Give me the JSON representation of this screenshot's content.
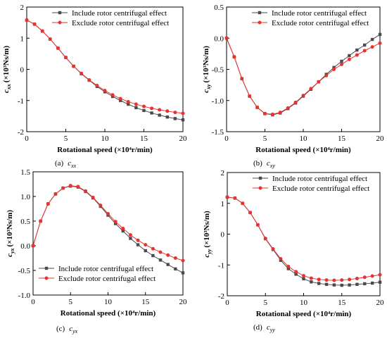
{
  "chart_data": [
    {
      "type": "line",
      "caption": {
        "label": "(a)",
        "symbol": "c",
        "sub": "xx"
      },
      "ylabel": "c_xx (×10³Ns/m)",
      "ylabel_parts": {
        "main": "c",
        "sub": "xx",
        "unit": "(×10³Ns/m)"
      },
      "xlabel": "Rotational speed (×10⁴r/min)",
      "xlim": [
        0,
        20
      ],
      "ylim": [
        -2,
        2
      ],
      "xticks": [
        "0",
        "5",
        "10",
        "15",
        "20"
      ],
      "yticks": [
        "-2",
        "-1",
        "0",
        "1",
        "2"
      ],
      "legend_position": "top-right",
      "x": [
        0,
        1,
        2,
        3,
        4,
        5,
        6,
        7,
        8,
        9,
        10,
        11,
        12,
        13,
        14,
        15,
        16,
        17,
        18,
        19,
        20
      ],
      "series": [
        {
          "name": "Include rotor centrifugal effect",
          "color": "#4a4a4a",
          "marker": "square",
          "values": [
            1.58,
            1.45,
            1.23,
            0.97,
            0.68,
            0.38,
            0.1,
            -0.14,
            -0.35,
            -0.55,
            -0.72,
            -0.87,
            -1.0,
            -1.12,
            -1.23,
            -1.32,
            -1.4,
            -1.47,
            -1.53,
            -1.58,
            -1.62
          ]
        },
        {
          "name": "Exclude rotor centrifugal effect",
          "color": "#e8322f",
          "marker": "circle",
          "values": [
            1.58,
            1.45,
            1.23,
            0.97,
            0.68,
            0.38,
            0.1,
            -0.13,
            -0.34,
            -0.52,
            -0.68,
            -0.82,
            -0.94,
            -1.04,
            -1.12,
            -1.19,
            -1.25,
            -1.3,
            -1.34,
            -1.38,
            -1.41
          ]
        }
      ]
    },
    {
      "type": "line",
      "caption": {
        "label": "(b)",
        "symbol": "c",
        "sub": "xy"
      },
      "ylabel_parts": {
        "main": "c",
        "sub": "xy",
        "unit": "(×10³Ns/m)"
      },
      "xlabel": "Rotational speed (×10⁴r/min)",
      "xlim": [
        0,
        20
      ],
      "ylim": [
        -1.5,
        0.5
      ],
      "xticks": [
        "0",
        "5",
        "10",
        "15",
        "20"
      ],
      "yticks": [
        "-1.5",
        "-1.0",
        "-0.5",
        "0.0",
        "0.5"
      ],
      "legend_position": "top-right",
      "x": [
        0,
        1,
        2,
        3,
        4,
        5,
        6,
        7,
        8,
        9,
        10,
        11,
        12,
        13,
        14,
        15,
        16,
        17,
        18,
        19,
        20
      ],
      "series": [
        {
          "name": "Include rotor centrifugal effect",
          "color": "#4a4a4a",
          "marker": "square",
          "values": [
            0.0,
            -0.3,
            -0.65,
            -0.93,
            -1.11,
            -1.21,
            -1.23,
            -1.2,
            -1.13,
            -1.04,
            -0.93,
            -0.82,
            -0.7,
            -0.58,
            -0.47,
            -0.37,
            -0.28,
            -0.19,
            -0.11,
            -0.02,
            0.06
          ]
        },
        {
          "name": "Exclude rotor centrifugal effect",
          "color": "#e8322f",
          "marker": "circle",
          "values": [
            0.0,
            -0.3,
            -0.65,
            -0.93,
            -1.11,
            -1.21,
            -1.22,
            -1.19,
            -1.12,
            -1.03,
            -0.92,
            -0.81,
            -0.7,
            -0.6,
            -0.5,
            -0.42,
            -0.34,
            -0.27,
            -0.2,
            -0.14,
            -0.08
          ]
        }
      ]
    },
    {
      "type": "line",
      "caption": {
        "label": "(c)",
        "symbol": "c",
        "sub": "yx"
      },
      "ylabel_parts": {
        "main": "c",
        "sub": "yx",
        "unit": "(×10³Ns/m)"
      },
      "xlabel": "Rotational speed (×10⁴r/min)",
      "xlim": [
        0,
        20
      ],
      "ylim": [
        -1.0,
        1.5
      ],
      "xticks": [
        "0",
        "5",
        "10",
        "15",
        "20"
      ],
      "yticks": [
        "-1.0",
        "-0.5",
        "0.0",
        "0.5",
        "1.0",
        "1.5"
      ],
      "legend_position": "bottom-left",
      "x": [
        0,
        1,
        2,
        3,
        4,
        5,
        6,
        7,
        8,
        9,
        10,
        11,
        12,
        13,
        14,
        15,
        16,
        17,
        18,
        19,
        20
      ],
      "series": [
        {
          "name": "Include rotor centrifugal effect",
          "color": "#4a4a4a",
          "marker": "square",
          "values": [
            0.0,
            0.5,
            0.85,
            1.05,
            1.17,
            1.21,
            1.19,
            1.1,
            0.97,
            0.8,
            0.62,
            0.45,
            0.3,
            0.15,
            0.02,
            -0.1,
            -0.2,
            -0.29,
            -0.38,
            -0.47,
            -0.55
          ]
        },
        {
          "name": "Exclude rotor centrifugal effect",
          "color": "#e8322f",
          "marker": "circle",
          "values": [
            0.0,
            0.5,
            0.85,
            1.05,
            1.17,
            1.22,
            1.2,
            1.11,
            0.98,
            0.82,
            0.65,
            0.49,
            0.35,
            0.22,
            0.11,
            0.02,
            -0.06,
            -0.13,
            -0.19,
            -0.25,
            -0.3
          ]
        }
      ]
    },
    {
      "type": "line",
      "caption": {
        "label": "(d)",
        "symbol": "c",
        "sub": "yy"
      },
      "ylabel_parts": {
        "main": "c",
        "sub": "yy",
        "unit": "(×10³Ns/m)"
      },
      "xlabel": "Rotational speed (×10⁴r/min)",
      "xlim": [
        0,
        20
      ],
      "ylim": [
        -2,
        2
      ],
      "xticks": [
        "0",
        "5",
        "10",
        "15",
        "20"
      ],
      "yticks": [
        "-2",
        "-1",
        "0",
        "1",
        "2"
      ],
      "legend_position": "top-right",
      "x": [
        0,
        1,
        2,
        3,
        4,
        5,
        6,
        7,
        8,
        9,
        10,
        11,
        12,
        13,
        14,
        15,
        16,
        17,
        18,
        19,
        20
      ],
      "series": [
        {
          "name": "Include rotor centrifugal effect",
          "color": "#4a4a4a",
          "marker": "square",
          "values": [
            1.2,
            1.17,
            1.0,
            0.7,
            0.3,
            -0.15,
            -0.5,
            -0.85,
            -1.12,
            -1.3,
            -1.45,
            -1.55,
            -1.6,
            -1.63,
            -1.65,
            -1.66,
            -1.65,
            -1.63,
            -1.61,
            -1.59,
            -1.56
          ]
        },
        {
          "name": "Exclude rotor centrifugal effect",
          "color": "#e8322f",
          "marker": "circle",
          "values": [
            1.2,
            1.17,
            1.0,
            0.7,
            0.3,
            -0.14,
            -0.48,
            -0.8,
            -1.05,
            -1.22,
            -1.35,
            -1.43,
            -1.47,
            -1.49,
            -1.5,
            -1.49,
            -1.47,
            -1.44,
            -1.4,
            -1.36,
            -1.32
          ]
        }
      ]
    }
  ]
}
